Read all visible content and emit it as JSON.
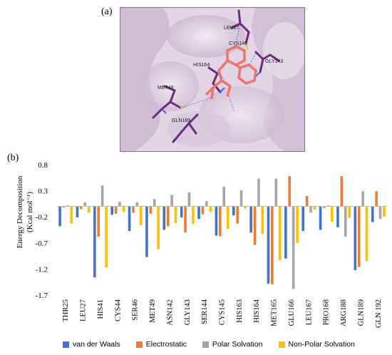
{
  "panels": {
    "a_label": "(a)",
    "b_label": "(b)"
  },
  "residue_labels": {
    "leu27": "LEU27",
    "cys145": "CYS145",
    "gly143": "GLY143",
    "his164": "HIS164",
    "met49": "MET49",
    "gln189": "GLN189"
  },
  "colors": {
    "van_der_waals": "#4472c4",
    "electrostatic": "#ed7d31",
    "polar": "#a5a5a5",
    "nonpolar": "#ffc000",
    "surface": "#e6d8e8",
    "residue_stick": "#6a2c7a",
    "ligand": "#e8776e"
  },
  "chart_data": {
    "type": "bar",
    "ylabel_line1": "Energy Decomposition",
    "ylabel_line2": "(Kcal mol⁻¹)",
    "ylim": [
      -1.7,
      0.8
    ],
    "yticks": [
      0.8,
      0.3,
      -0.2,
      -0.7,
      -1.2,
      -1.7
    ],
    "ytick_labels": [
      "0.8",
      "0.3",
      "-0.2",
      "-0.7",
      "-1.2",
      "-1.7"
    ],
    "grid": false,
    "legend_position": "bottom",
    "categories": [
      "THR25",
      "LEU27",
      "HIS41",
      "CYS44",
      "SER46",
      "MET49",
      "ASN142",
      "GLY143",
      "SER144",
      "CYS145",
      "HIS163",
      "HIS164",
      "MET165",
      "GLU166",
      "LEU167",
      "PRO168",
      "ARG188",
      "GLN189",
      "GLN 192"
    ],
    "series": [
      {
        "name": "van der Waals",
        "values": [
          -0.38,
          -0.21,
          -1.36,
          -0.16,
          -0.47,
          -0.97,
          -0.45,
          -0.21,
          -0.24,
          -0.56,
          -0.17,
          -0.5,
          -1.48,
          -1.0,
          -0.47,
          -0.45,
          -0.4,
          -1.22,
          -0.3
        ]
      },
      {
        "name": "Electrostatic",
        "values": [
          -0.02,
          -0.05,
          -0.58,
          -0.14,
          -0.12,
          -0.14,
          -0.38,
          -0.5,
          -0.15,
          -0.57,
          -0.33,
          -0.74,
          -1.49,
          0.58,
          0.2,
          -0.03,
          0.58,
          -1.16,
          0.29
        ]
      },
      {
        "name": "Polar Solvation",
        "values": [
          0.02,
          0.08,
          0.4,
          0.09,
          0.08,
          0.14,
          0.22,
          0.27,
          0.1,
          0.38,
          0.31,
          0.53,
          0.53,
          -1.58,
          -0.12,
          0.02,
          -0.58,
          0.29,
          -0.24
        ]
      },
      {
        "name": "Non-Polar Solvation",
        "values": [
          -0.33,
          -0.12,
          -1.17,
          -0.1,
          -0.36,
          -0.82,
          -0.32,
          -0.34,
          -0.1,
          -0.43,
          -0.04,
          -0.53,
          -1.03,
          -0.7,
          -0.06,
          -0.29,
          -0.22,
          -1.05,
          -0.2
        ]
      }
    ]
  }
}
